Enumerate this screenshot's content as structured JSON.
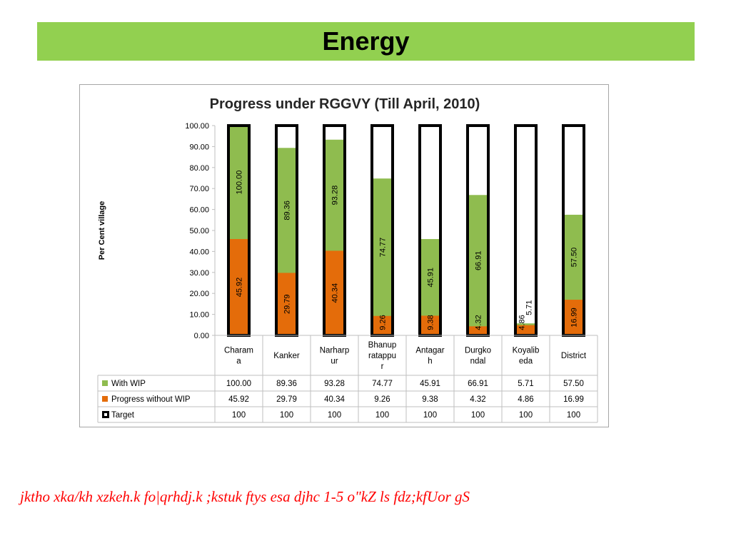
{
  "slide": {
    "title": "Energy",
    "caption": "jktho xka/kh xzkeh.k fo|qrhdj.k ;kstuk ftys esa djhc 1-5 o\"kZ ls fdz;kfUor gS"
  },
  "colors": {
    "banner": "#92d050",
    "with_wip": "#8fbc4f",
    "progress_without_wip": "#e46c0a",
    "target": "#000000",
    "caption": "#ff0000"
  },
  "chart_data": {
    "type": "bar",
    "title": "Progress under RGGVY (Till April, 2010)",
    "ylabel": "Per Cent village",
    "ylim": [
      0,
      100
    ],
    "yticks": [
      "0.00",
      "10.00",
      "20.00",
      "30.00",
      "40.00",
      "50.00",
      "60.00",
      "70.00",
      "80.00",
      "90.00",
      "100.00"
    ],
    "categories": [
      "Charam a",
      "Kanker",
      "Narharp ur",
      "Bhanup ratappu r",
      "Antagar h",
      "Durgko ndal",
      "Koyalib eda",
      "District"
    ],
    "series": [
      {
        "name": "With WIP",
        "values": [
          100.0,
          89.36,
          93.28,
          74.77,
          45.91,
          66.91,
          5.71,
          57.5
        ],
        "labels": [
          "100.00",
          "89.36",
          "93.28",
          "74.77",
          "45.91",
          "66.91",
          "5.71",
          "57.50"
        ]
      },
      {
        "name": "Progress without WIP",
        "values": [
          45.92,
          29.79,
          40.34,
          9.26,
          9.38,
          4.32,
          4.86,
          16.99
        ],
        "labels": [
          "45.92",
          "29.79",
          "40.34",
          "9.26",
          "9.38",
          "4.32",
          "4.86",
          "16.99"
        ]
      },
      {
        "name": "Target",
        "values": [
          100,
          100,
          100,
          100,
          100,
          100,
          100,
          100
        ],
        "labels": [
          "100",
          "100",
          "100",
          "100",
          "100",
          "100",
          "100",
          "100"
        ]
      }
    ],
    "legend_position": "data-table",
    "grid": false
  }
}
